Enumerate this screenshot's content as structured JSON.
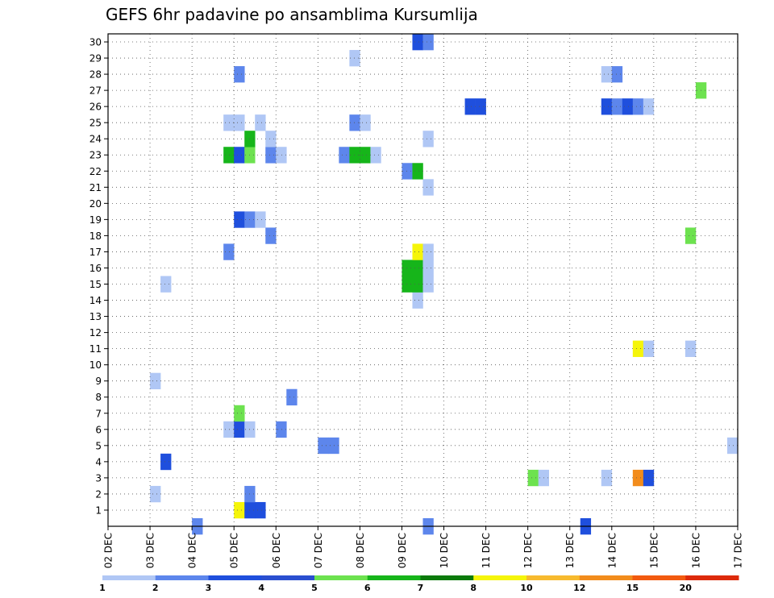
{
  "chart_data": {
    "type": "heatmap",
    "title": "GEFS 6hr padavine po ansamblima Kursumlija",
    "xlabel": "",
    "ylabel": "",
    "x_ticks": [
      "02 DEC",
      "03 DEC",
      "04 DEC",
      "05 DEC",
      "06 DEC",
      "07 DEC",
      "08 DEC",
      "09 DEC",
      "10 DEC",
      "11 DEC",
      "12 DEC",
      "13 DEC",
      "14 DEC",
      "15 DEC",
      "16 DEC",
      "17 DEC"
    ],
    "y_ticks": [
      1,
      2,
      3,
      4,
      5,
      6,
      7,
      8,
      9,
      10,
      11,
      12,
      13,
      14,
      15,
      16,
      17,
      18,
      19,
      20,
      21,
      22,
      23,
      24,
      25,
      26,
      27,
      28,
      29,
      30
    ],
    "time_range_days": [
      0,
      15
    ],
    "member_range": [
      0,
      30
    ],
    "step_hours": 6,
    "legend_labels": [
      "1",
      "2",
      "3",
      "4",
      "5",
      "6",
      "7",
      "8",
      "10",
      "12",
      "15",
      "20"
    ],
    "legend_colors": [
      "#b0c7f5",
      "#5d86ec",
      "#1f4fdd",
      "#2a4fd0",
      "#6de24f",
      "#16b51a",
      "#0b7a0b",
      "#f5f50a",
      "#f7ba2e",
      "#f28c1c",
      "#f25a0f",
      "#dd2a0a",
      "#a4110d",
      "#6b0a0a"
    ],
    "cells": [
      {
        "m": 1,
        "d": 3.0,
        "c": "#f5f50a"
      },
      {
        "m": 1,
        "d": 3.25,
        "c": "#1f4fdd"
      },
      {
        "m": 1,
        "d": 3.5,
        "c": "#1f4fdd"
      },
      {
        "m": 2,
        "d": 1.0,
        "c": "#b0c7f5"
      },
      {
        "m": 2,
        "d": 3.25,
        "c": "#5d86ec"
      },
      {
        "m": 3,
        "d": 10.0,
        "c": "#6de24f"
      },
      {
        "m": 3,
        "d": 10.25,
        "c": "#b0c7f5"
      },
      {
        "m": 3,
        "d": 11.75,
        "c": "#b0c7f5"
      },
      {
        "m": 3,
        "d": 12.5,
        "c": "#f28c1c"
      },
      {
        "m": 3,
        "d": 12.75,
        "c": "#1f4fdd"
      },
      {
        "m": 4,
        "d": 1.25,
        "c": "#1f4fdd"
      },
      {
        "m": 5,
        "d": 5.0,
        "c": "#5d86ec"
      },
      {
        "m": 5,
        "d": 5.25,
        "c": "#5d86ec"
      },
      {
        "m": 5,
        "d": 14.75,
        "c": "#b0c7f5"
      },
      {
        "m": 6,
        "d": 2.75,
        "c": "#b0c7f5"
      },
      {
        "m": 6,
        "d": 3.0,
        "c": "#1f4fdd"
      },
      {
        "m": 6,
        "d": 3.25,
        "c": "#b0c7f5"
      },
      {
        "m": 6,
        "d": 4.0,
        "c": "#5d86ec"
      },
      {
        "m": 7,
        "d": 3.0,
        "c": "#6de24f"
      },
      {
        "m": 8,
        "d": 4.25,
        "c": "#5d86ec"
      },
      {
        "m": 9,
        "d": 1.0,
        "c": "#b0c7f5"
      },
      {
        "m": 11,
        "d": 12.5,
        "c": "#f5f50a"
      },
      {
        "m": 11,
        "d": 12.75,
        "c": "#b0c7f5"
      },
      {
        "m": 11,
        "d": 13.75,
        "c": "#b0c7f5"
      },
      {
        "m": 14,
        "d": 7.25,
        "c": "#b0c7f5"
      },
      {
        "m": 15,
        "d": 1.25,
        "c": "#b0c7f5"
      },
      {
        "m": 15,
        "d": 7.0,
        "c": "#16b51a"
      },
      {
        "m": 15,
        "d": 7.25,
        "c": "#16b51a"
      },
      {
        "m": 15,
        "d": 7.5,
        "c": "#b0c7f5"
      },
      {
        "m": 16,
        "d": 7.0,
        "c": "#16b51a"
      },
      {
        "m": 16,
        "d": 7.25,
        "c": "#16b51a"
      },
      {
        "m": 16,
        "d": 7.5,
        "c": "#b0c7f5"
      },
      {
        "m": 17,
        "d": 2.75,
        "c": "#5d86ec"
      },
      {
        "m": 17,
        "d": 7.25,
        "c": "#f5f50a"
      },
      {
        "m": 17,
        "d": 7.5,
        "c": "#b0c7f5"
      },
      {
        "m": 18,
        "d": 3.75,
        "c": "#5d86ec"
      },
      {
        "m": 18,
        "d": 13.75,
        "c": "#6de24f"
      },
      {
        "m": 19,
        "d": 3.0,
        "c": "#1f4fdd"
      },
      {
        "m": 19,
        "d": 3.25,
        "c": "#5d86ec"
      },
      {
        "m": 19,
        "d": 3.5,
        "c": "#b0c7f5"
      },
      {
        "m": 21,
        "d": 7.5,
        "c": "#b0c7f5"
      },
      {
        "m": 22,
        "d": 7.0,
        "c": "#5d86ec"
      },
      {
        "m": 22,
        "d": 7.25,
        "c": "#16b51a"
      },
      {
        "m": 23,
        "d": 2.75,
        "c": "#16b51a"
      },
      {
        "m": 23,
        "d": 3.0,
        "c": "#1f4fdd"
      },
      {
        "m": 23,
        "d": 3.25,
        "c": "#6de24f"
      },
      {
        "m": 23,
        "d": 3.75,
        "c": "#5d86ec"
      },
      {
        "m": 23,
        "d": 4.0,
        "c": "#b0c7f5"
      },
      {
        "m": 23,
        "d": 5.5,
        "c": "#5d86ec"
      },
      {
        "m": 23,
        "d": 5.75,
        "c": "#16b51a"
      },
      {
        "m": 23,
        "d": 6.0,
        "c": "#16b51a"
      },
      {
        "m": 23,
        "d": 6.25,
        "c": "#b0c7f5"
      },
      {
        "m": 24,
        "d": 3.25,
        "c": "#16b51a"
      },
      {
        "m": 24,
        "d": 3.75,
        "c": "#b0c7f5"
      },
      {
        "m": 24,
        "d": 7.5,
        "c": "#b0c7f5"
      },
      {
        "m": 25,
        "d": 2.75,
        "c": "#b0c7f5"
      },
      {
        "m": 25,
        "d": 3.0,
        "c": "#b0c7f5"
      },
      {
        "m": 25,
        "d": 3.5,
        "c": "#b0c7f5"
      },
      {
        "m": 25,
        "d": 5.75,
        "c": "#5d86ec"
      },
      {
        "m": 25,
        "d": 6.0,
        "c": "#b0c7f5"
      },
      {
        "m": 26,
        "d": 8.5,
        "c": "#1f4fdd"
      },
      {
        "m": 26,
        "d": 8.75,
        "c": "#1f4fdd"
      },
      {
        "m": 26,
        "d": 11.75,
        "c": "#1f4fdd"
      },
      {
        "m": 26,
        "d": 12.0,
        "c": "#5d86ec"
      },
      {
        "m": 26,
        "d": 12.25,
        "c": "#1f4fdd"
      },
      {
        "m": 26,
        "d": 12.5,
        "c": "#5d86ec"
      },
      {
        "m": 26,
        "d": 12.75,
        "c": "#b0c7f5"
      },
      {
        "m": 27,
        "d": 14.0,
        "c": "#6de24f"
      },
      {
        "m": 28,
        "d": 3.0,
        "c": "#5d86ec"
      },
      {
        "m": 28,
        "d": 11.75,
        "c": "#b0c7f5"
      },
      {
        "m": 28,
        "d": 12.0,
        "c": "#5d86ec"
      },
      {
        "m": 29,
        "d": 5.75,
        "c": "#b0c7f5"
      },
      {
        "m": 30,
        "d": 7.25,
        "c": "#1f4fdd"
      },
      {
        "m": 30,
        "d": 7.5,
        "c": "#5d86ec"
      },
      {
        "m": 0,
        "d": 2.0,
        "c": "#5d86ec"
      },
      {
        "m": 0,
        "d": 7.5,
        "c": "#5d86ec"
      },
      {
        "m": 0,
        "d": 11.25,
        "c": "#1f4fdd"
      }
    ]
  }
}
